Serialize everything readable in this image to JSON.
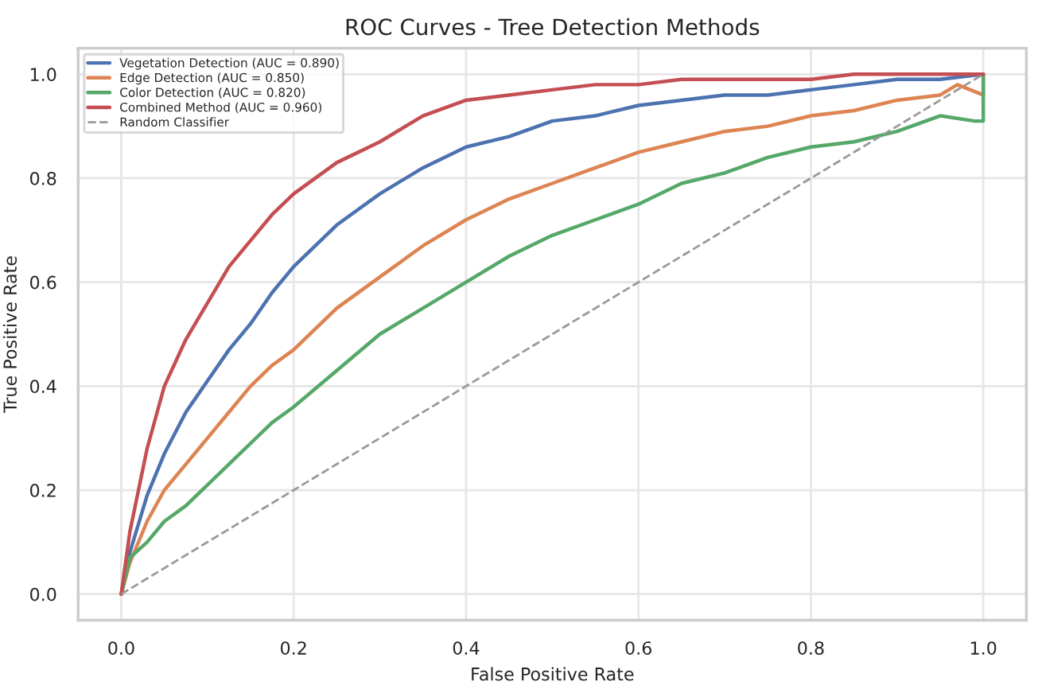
{
  "chart_data": {
    "type": "line",
    "title": "ROC Curves - Tree Detection Methods",
    "xlabel": "False Positive Rate",
    "ylabel": "True Positive Rate",
    "xlim": [
      -0.05,
      1.05
    ],
    "ylim": [
      -0.05,
      1.05
    ],
    "xticks": [
      {
        "value": 0,
        "label": "0.0"
      },
      0.2,
      0.4,
      0.6,
      0.8,
      {
        "value": 1,
        "label": "1.0"
      }
    ],
    "yticks": [
      {
        "value": 0,
        "label": "0.0"
      },
      0.2,
      0.4,
      0.6,
      0.8,
      {
        "value": 1,
        "label": "1.0"
      }
    ],
    "grid": true,
    "legend": "top left",
    "marker": "none",
    "series": [
      {
        "name": "Vegetation Detection (AUC = 0.890)",
        "color": "#4c72b0",
        "x": [
          0,
          0.01,
          0.03,
          0.05,
          0.075,
          0.1,
          0.125,
          0.15,
          0.175,
          0.2,
          0.25,
          0.3,
          0.35,
          0.4,
          0.45,
          0.5,
          0.55,
          0.6,
          0.65,
          0.7,
          0.75,
          0.8,
          0.85,
          0.9,
          0.95,
          1.0
        ],
        "values": [
          0,
          0.08,
          0.19,
          0.27,
          0.35,
          0.41,
          0.47,
          0.52,
          0.58,
          0.63,
          0.71,
          0.77,
          0.82,
          0.86,
          0.88,
          0.91,
          0.92,
          0.94,
          0.95,
          0.96,
          0.96,
          0.97,
          0.98,
          0.99,
          0.99,
          1.0
        ]
      },
      {
        "name": "Edge Detection (AUC = 0.850)",
        "color": "#dd8452",
        "x": [
          0,
          0.01,
          0.03,
          0.05,
          0.075,
          0.1,
          0.125,
          0.15,
          0.175,
          0.2,
          0.25,
          0.3,
          0.35,
          0.4,
          0.45,
          0.5,
          0.55,
          0.6,
          0.65,
          0.7,
          0.75,
          0.8,
          0.85,
          0.9,
          0.95,
          0.97,
          1.0,
          1.0
        ],
        "values": [
          0,
          0.06,
          0.14,
          0.2,
          0.25,
          0.3,
          0.35,
          0.4,
          0.44,
          0.47,
          0.55,
          0.61,
          0.67,
          0.72,
          0.76,
          0.79,
          0.82,
          0.85,
          0.87,
          0.89,
          0.9,
          0.92,
          0.93,
          0.95,
          0.96,
          0.98,
          0.96,
          1.0
        ]
      },
      {
        "name": "Color Detection (AUC = 0.820)",
        "color": "#55a868",
        "x": [
          0,
          0.01,
          0.03,
          0.05,
          0.075,
          0.1,
          0.125,
          0.15,
          0.175,
          0.2,
          0.25,
          0.3,
          0.35,
          0.4,
          0.45,
          0.5,
          0.55,
          0.6,
          0.65,
          0.7,
          0.75,
          0.8,
          0.85,
          0.9,
          0.95,
          0.99,
          1.0,
          1.0
        ],
        "values": [
          0,
          0.07,
          0.1,
          0.14,
          0.17,
          0.21,
          0.25,
          0.29,
          0.33,
          0.36,
          0.43,
          0.5,
          0.55,
          0.6,
          0.65,
          0.69,
          0.72,
          0.75,
          0.79,
          0.81,
          0.84,
          0.86,
          0.87,
          0.89,
          0.92,
          0.91,
          0.91,
          1.0
        ]
      },
      {
        "name": "Combined Method (AUC = 0.960)",
        "color": "#c44e52",
        "x": [
          0,
          0.01,
          0.03,
          0.05,
          0.075,
          0.1,
          0.125,
          0.15,
          0.175,
          0.2,
          0.25,
          0.3,
          0.35,
          0.4,
          0.45,
          0.5,
          0.55,
          0.6,
          0.65,
          0.7,
          0.75,
          0.8,
          0.85,
          0.9,
          0.95,
          1.0
        ],
        "values": [
          0,
          0.12,
          0.28,
          0.4,
          0.49,
          0.56,
          0.63,
          0.68,
          0.73,
          0.77,
          0.83,
          0.87,
          0.92,
          0.95,
          0.96,
          0.97,
          0.98,
          0.98,
          0.99,
          0.99,
          0.99,
          0.99,
          1.0,
          1.0,
          1.0,
          1.0
        ]
      },
      {
        "name": "Random Classifier",
        "color": "#999999",
        "line_style": "dashed",
        "x": [
          0,
          1
        ],
        "values": [
          0,
          1
        ]
      }
    ]
  }
}
